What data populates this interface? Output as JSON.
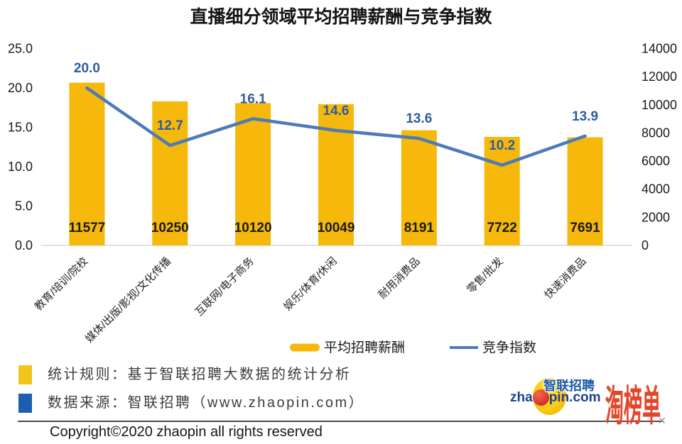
{
  "title": "直播细分领域平均招聘薪酬与竞争指数",
  "chart_data": {
    "type": "combo",
    "title": "直播细分领域平均招聘薪酬与竞争指数",
    "categories": [
      "教育/培训/院校",
      "媒体/出版/影视/文化传播",
      "互联网/电子商务",
      "娱乐/体育/休闲",
      "耐用消费品",
      "零售/批发",
      "快速消费品"
    ],
    "series": [
      {
        "name": "平均招聘薪酬",
        "type": "bar",
        "axis": "right",
        "values": [
          11577,
          10250,
          10120,
          10049,
          8191,
          7722,
          7691
        ],
        "color": "#F5B80B"
      },
      {
        "name": "竞争指数",
        "type": "line",
        "axis": "left",
        "values": [
          20.0,
          12.7,
          16.1,
          14.6,
          13.6,
          10.2,
          13.9
        ],
        "color": "#4C7BB9",
        "label_color": "#2E5C9E"
      }
    ],
    "left_axis": {
      "min": 0,
      "max": 25,
      "step": 5,
      "tick_labels": [
        "0.0",
        "5.0",
        "10.0",
        "15.0",
        "20.0",
        "25.0"
      ]
    },
    "right_axis": {
      "min": 0,
      "max": 14000,
      "step": 2000,
      "tick_labels": [
        "0",
        "2000",
        "4000",
        "6000",
        "8000",
        "10000",
        "12000",
        "14000"
      ]
    },
    "legend_position": "bottom",
    "grid": false
  },
  "footer": {
    "notes": [
      {
        "icon_color": "#F0C419",
        "text": "统计规则：基于智联招聘大数据的统计分析"
      },
      {
        "icon_color": "#1C5FAE",
        "text": "数据来源：智联招聘（www.zhaopin.com）"
      }
    ],
    "copyright": "Copyright©2020 zhaopin all rights reserved"
  },
  "branding": {
    "zhaopin_cn": "智联招聘",
    "zhaopin_url_left": "zha",
    "zhaopin_url_right": "pin.com",
    "taobang": "淘榜单"
  }
}
